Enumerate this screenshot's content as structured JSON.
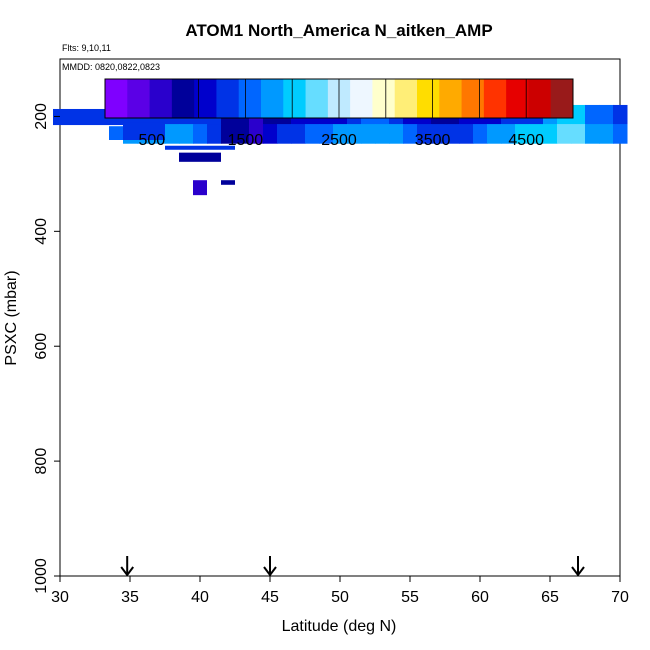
{
  "chart_data": {
    "type": "heatmap",
    "title": "ATOM1 North_America N_aitken_AMP",
    "flights_note": "Flts: 9,10,11",
    "date_note": "MMDD: 0820,0822,0823",
    "xlabel": "Latitude (deg N)",
    "ylabel": "PSXC (mbar)",
    "xlim": [
      30,
      70
    ],
    "ylim": [
      1000,
      100
    ],
    "x_ticks": [
      30,
      35,
      40,
      45,
      50,
      55,
      60,
      65,
      70
    ],
    "y_ticks": [
      200,
      400,
      600,
      800,
      1000
    ],
    "colorbar": {
      "range": [
        0,
        5000
      ],
      "tick_values": [
        500,
        1500,
        2500,
        3500,
        4500
      ],
      "tick_labels": [
        "500",
        "1500",
        "2500",
        "3500",
        "4500"
      ],
      "colors": [
        "#7f00ff",
        "#5b00e6",
        "#2a00cc",
        "#00009a",
        "#0000cc",
        "#0033e6",
        "#0066ff",
        "#0099ff",
        "#00ccff",
        "#66ddff",
        "#bfeaff",
        "#eef7ff",
        "#ffffcc",
        "#ffee77",
        "#ffdd00",
        "#ffaa00",
        "#ff7700",
        "#ff3300",
        "#e60000",
        "#cc0000",
        "#991a1a"
      ]
    },
    "arrow_latitudes": [
      34.8,
      45,
      67
    ],
    "cells": [
      [
        30,
        35,
        187,
        215,
        1200
      ],
      [
        31,
        33,
        188,
        212,
        1300
      ],
      [
        34,
        37,
        217,
        241,
        1500
      ],
      [
        35,
        37,
        211,
        241,
        1200
      ],
      [
        38,
        42,
        251,
        258,
        1200
      ],
      [
        39,
        41,
        263,
        279,
        900
      ],
      [
        40,
        40,
        311,
        337,
        500
      ],
      [
        42,
        42,
        311,
        319,
        900
      ]
    ],
    "heat_grid": {
      "lat_start": 29.5,
      "lat_step": 1,
      "p_start": 180,
      "p_step": 33.3,
      "rows": [
        [
          0,
          0,
          0,
          0,
          0,
          1400,
          1400,
          1400,
          1300,
          1300,
          1200,
          1200,
          900,
          900,
          600,
          800,
          800,
          1000,
          1000,
          1100,
          1100,
          1400,
          1500,
          1500,
          1300,
          1100,
          1100,
          900,
          900,
          1000,
          1100,
          1100,
          1200,
          1300,
          1400,
          1700,
          2000,
          2000,
          1600,
          1500,
          1400
        ],
        [
          0,
          0,
          0,
          0,
          0,
          1700,
          1700,
          1700,
          1900,
          1900,
          1600,
          1400,
          900,
          900,
          700,
          1000,
          1200,
          1400,
          1500,
          1600,
          1700,
          1800,
          1900,
          1900,
          1700,
          1500,
          1400,
          1300,
          1200,
          1300,
          1500,
          1700,
          1700,
          2000,
          2000,
          2100,
          2300,
          2200,
          1900,
          1800,
          1600
        ]
      ]
    }
  }
}
